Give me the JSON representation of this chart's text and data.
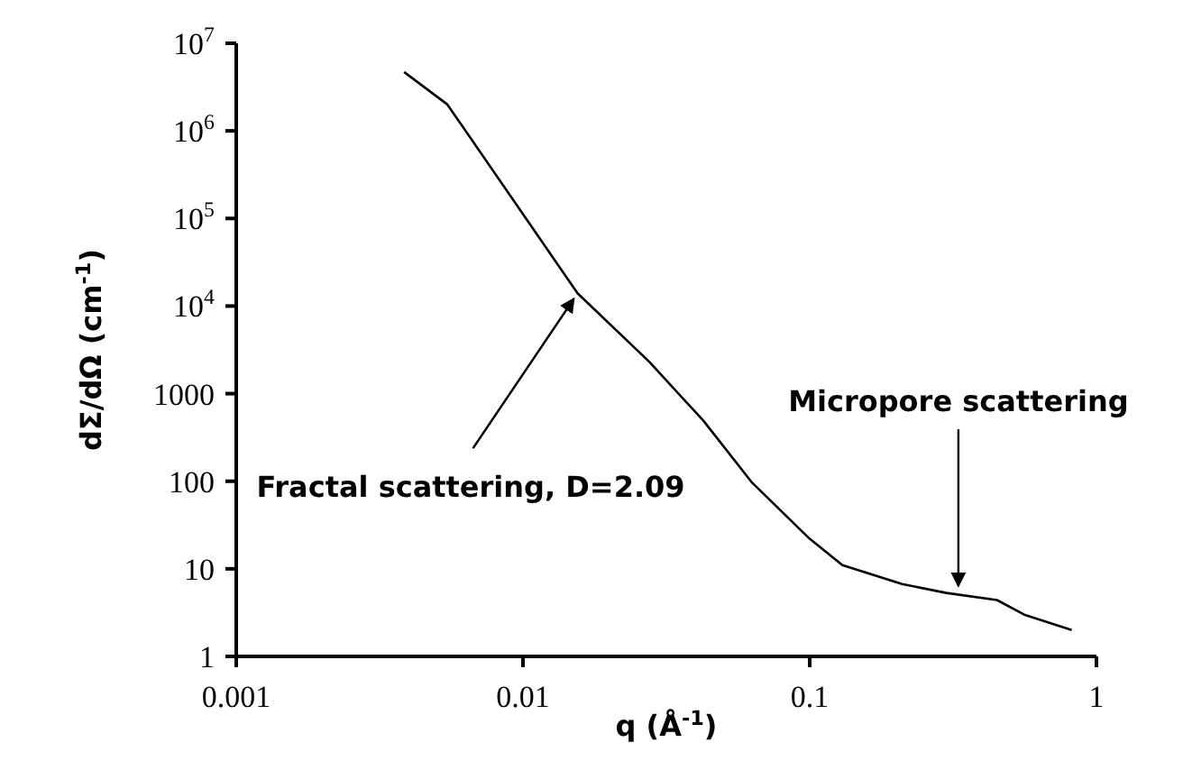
{
  "chart_data": {
    "type": "line",
    "xlabel": "q (Å$^{-1}$)",
    "ylabel": "dΣ/dΩ (cm$^{-1}$)",
    "log": "xy",
    "marker": "none",
    "line_style": "solid",
    "xlim": [
      0.001,
      1
    ],
    "xticks": [
      0.001,
      0.01,
      0.1,
      1
    ],
    "ylim": [
      1,
      10000000
    ],
    "yticks": [
      1,
      10,
      100,
      1000,
      {
        "value": 10000,
        "label": "10$^{4}$"
      },
      {
        "value": 100000,
        "label": "10$^{5}$"
      },
      {
        "value": 1000000,
        "label": "10$^{6}$"
      },
      {
        "value": 10000000,
        "label": "10$^{7}$"
      }
    ],
    "series": [
      {
        "color": "#000000",
        "x": [
          0.00385,
          0.00545,
          0.0155,
          0.0276,
          0.0426,
          0.063,
          0.1,
          0.13,
          0.21,
          0.3,
          0.45,
          0.56,
          0.82
        ],
        "values": [
          4700000,
          2000000,
          14000,
          2300,
          490,
          96,
          22,
          11,
          6.7,
          5.3,
          4.4,
          3,
          2
        ]
      }
    ],
    "annotations": [
      {
        "text": "Fractal scattering, D=2.09",
        "x": 0.0155,
        "y": 14000
      },
      {
        "text": "Micropore scattering",
        "x": 0.33,
        "y": 5
      }
    ]
  }
}
